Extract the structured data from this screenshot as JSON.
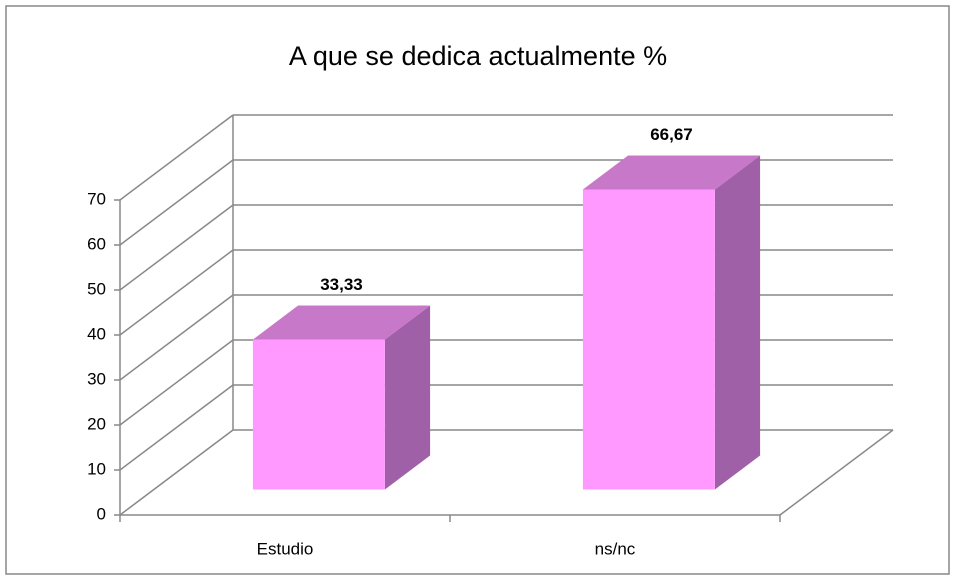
{
  "chart_data": {
    "type": "bar3d",
    "title": "A que se dedica actualmente %",
    "categories": [
      "Estudio",
      "ns/nc"
    ],
    "values": [
      33.33,
      66.67
    ],
    "value_labels": [
      "33,33",
      "66,67"
    ],
    "color": "#ff99ff",
    "ylim": [
      0,
      70
    ],
    "yticks": [
      0,
      10,
      20,
      30,
      40,
      50,
      60,
      70
    ],
    "grid": true
  }
}
